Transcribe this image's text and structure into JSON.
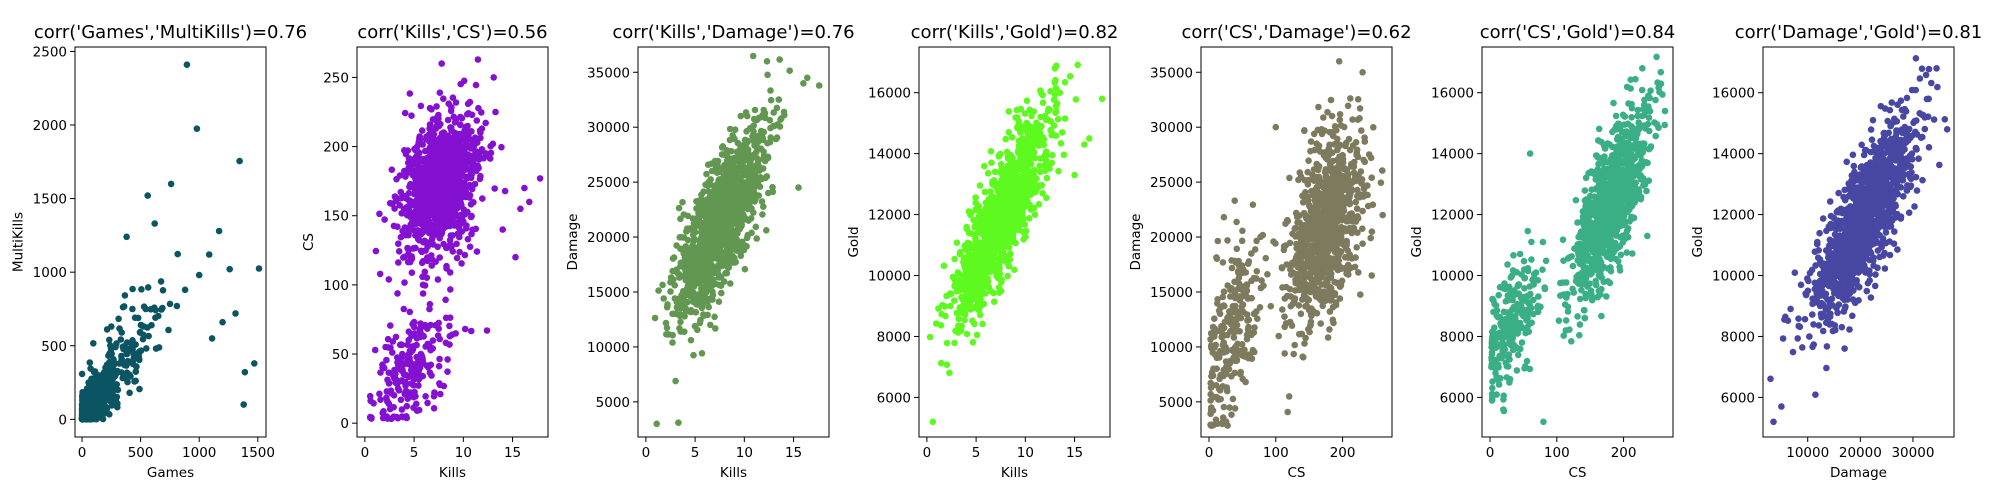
{
  "chart_data": [
    {
      "type": "scatter",
      "title": "corr('Games','MultiKills')=0.76",
      "xlabel": "Games",
      "ylabel": "MultiKills",
      "xlim": [
        -60,
        1570
      ],
      "ylim": [
        -120,
        2530
      ],
      "xticks": [
        0,
        500,
        1000,
        1500
      ],
      "yticks": [
        0,
        500,
        1000,
        1500,
        2000,
        2500
      ],
      "color": "#0b5563",
      "point_clusters": [
        {
          "x_mean": 90,
          "x_sd": 70,
          "y_mean": 110,
          "y_sd": 90,
          "rho": 0.7,
          "count": 900,
          "x_min": 0,
          "y_min": 0
        },
        {
          "x_mean": 320,
          "x_sd": 170,
          "y_mean": 380,
          "y_sd": 220,
          "rho": 0.7,
          "count": 160,
          "x_min": 0,
          "y_min": 0
        }
      ],
      "points": [
        [
          895,
          2410
        ],
        [
          980,
          1975
        ],
        [
          1345,
          1755
        ],
        [
          760,
          1600
        ],
        [
          1170,
          1280
        ],
        [
          1085,
          1120
        ],
        [
          1260,
          1020
        ],
        [
          1510,
          1025
        ],
        [
          1000,
          980
        ],
        [
          620,
          1330
        ],
        [
          560,
          1520
        ],
        [
          380,
          1240
        ],
        [
          1470,
          380
        ],
        [
          1390,
          320
        ],
        [
          1380,
          100
        ],
        [
          1310,
          720
        ],
        [
          1200,
          660
        ],
        [
          1110,
          550
        ],
        [
          880,
          880
        ],
        [
          810,
          770
        ]
      ]
    },
    {
      "type": "scatter",
      "title": "corr('Kills','CS')=0.56",
      "xlabel": "Kills",
      "ylabel": "CS",
      "xlim": [
        -0.8,
        18.6
      ],
      "ylim": [
        -10,
        272
      ],
      "xticks": [
        0,
        5,
        10,
        15
      ],
      "yticks": [
        0,
        50,
        100,
        150,
        200,
        250
      ],
      "color": "#8410d2",
      "point_clusters": [
        {
          "x_mean": 7.6,
          "x_sd": 2.0,
          "y_mean": 172,
          "y_sd": 26,
          "rho": 0.3,
          "count": 1100,
          "x_min": 0.5
        },
        {
          "x_mean": 4.5,
          "x_sd": 2.0,
          "y_mean": 40,
          "y_sd": 22,
          "rho": 0.5,
          "count": 220,
          "x_min": 0.5,
          "y_min": 3
        }
      ],
      "points": [
        [
          7.8,
          260
        ],
        [
          16.2,
          170
        ],
        [
          15.8,
          155
        ],
        [
          16.7,
          160
        ],
        [
          17.8,
          177
        ],
        [
          15.3,
          120
        ],
        [
          12.4,
          67
        ],
        [
          14.0,
          140
        ],
        [
          13.0,
          202
        ]
      ]
    },
    {
      "type": "scatter",
      "title": "corr('Kills','Damage')=0.76",
      "xlabel": "Kills",
      "ylabel": "Damage",
      "xlim": [
        -0.8,
        18.6
      ],
      "ylim": [
        1800,
        37300
      ],
      "xticks": [
        0,
        5,
        10,
        15
      ],
      "yticks": [
        5000,
        10000,
        15000,
        20000,
        25000,
        30000,
        35000
      ],
      "color": "#629751",
      "point_clusters": [
        {
          "x_mean": 7.7,
          "x_sd": 2.3,
          "y_mean": 21500,
          "y_sd": 4300,
          "rho": 0.76,
          "count": 1200,
          "x_min": 0.5,
          "y_min": 2800
        }
      ],
      "points": [
        [
          17.6,
          33800
        ],
        [
          16.0,
          34000
        ],
        [
          16.4,
          34500
        ],
        [
          12.3,
          36000
        ],
        [
          15.5,
          24500
        ],
        [
          1.1,
          3000
        ],
        [
          3.3,
          3100
        ]
      ]
    },
    {
      "type": "scatter",
      "title": "corr('Kills','Gold')=0.82",
      "xlabel": "Kills",
      "ylabel": "Gold",
      "xlim": [
        -0.8,
        18.6
      ],
      "ylim": [
        4700,
        17500
      ],
      "xticks": [
        0,
        5,
        10,
        15
      ],
      "yticks": [
        6000,
        8000,
        10000,
        12000,
        14000,
        16000
      ],
      "color": "#5ef91e",
      "point_clusters": [
        {
          "x_mean": 7.7,
          "x_sd": 2.3,
          "y_mean": 12000,
          "y_sd": 1600,
          "rho": 0.82,
          "count": 1200,
          "x_min": 0.3,
          "y_min": 5200
        }
      ],
      "points": [
        [
          13.0,
          16800
        ],
        [
          17.8,
          15800
        ],
        [
          16.5,
          14500
        ],
        [
          16.0,
          14300
        ],
        [
          0.6,
          5200
        ],
        [
          15.0,
          13300
        ]
      ]
    },
    {
      "type": "scatter",
      "title": "corr('CS','Damage')=0.62",
      "xlabel": "CS",
      "ylabel": "Damage",
      "xlim": [
        -12,
        274
      ],
      "ylim": [
        1800,
        37300
      ],
      "xticks": [
        0,
        100,
        200
      ],
      "yticks": [
        5000,
        10000,
        15000,
        20000,
        25000,
        30000,
        35000
      ],
      "color": "#7d7a5e",
      "point_clusters": [
        {
          "x_mean": 175,
          "x_sd": 27,
          "y_mean": 21000,
          "y_sd": 4200,
          "rho": 0.45,
          "count": 1050,
          "y_min": 3000
        },
        {
          "x_mean": 35,
          "x_sd": 22,
          "y_mean": 11500,
          "y_sd": 4500,
          "rho": 0.5,
          "count": 250,
          "x_min": 2,
          "y_min": 2800
        }
      ],
      "points": [
        [
          195,
          36000
        ],
        [
          230,
          35000
        ],
        [
          260,
          22000
        ],
        [
          100,
          30000
        ],
        [
          120,
          5500
        ]
      ]
    },
    {
      "type": "scatter",
      "title": "corr('CS','Gold')=0.84",
      "xlabel": "CS",
      "ylabel": "Gold",
      "xlim": [
        -12,
        274
      ],
      "ylim": [
        4700,
        17500
      ],
      "xticks": [
        0,
        100,
        200
      ],
      "yticks": [
        6000,
        8000,
        10000,
        12000,
        14000,
        16000
      ],
      "color": "#3aaf85",
      "point_clusters": [
        {
          "x_mean": 180,
          "x_sd": 28,
          "y_mean": 12300,
          "y_sd": 1500,
          "rho": 0.75,
          "count": 1050,
          "y_min": 5500
        },
        {
          "x_mean": 30,
          "x_sd": 22,
          "y_mean": 8300,
          "y_sd": 1100,
          "rho": 0.6,
          "count": 250,
          "x_min": 2,
          "y_min": 5500
        }
      ],
      "points": [
        [
          228,
          16800
        ],
        [
          237,
          15900
        ],
        [
          262,
          15400
        ],
        [
          80,
          5200
        ],
        [
          20,
          5600
        ],
        [
          60,
          14000
        ]
      ]
    },
    {
      "type": "scatter",
      "title": "corr('Damage','Gold')=0.81",
      "xlabel": "Damage",
      "ylabel": "Gold",
      "xlim": [
        1500,
        37800
      ],
      "ylim": [
        4700,
        17500
      ],
      "xticks": [
        10000,
        20000,
        30000
      ],
      "yticks": [
        6000,
        8000,
        10000,
        12000,
        14000,
        16000
      ],
      "color": "#4847a3",
      "point_clusters": [
        {
          "x_mean": 20500,
          "x_sd": 5000,
          "y_mean": 11800,
          "y_sd": 1700,
          "rho": 0.81,
          "count": 1300,
          "x_min": 2800,
          "y_min": 5200
        }
      ],
      "points": [
        [
          34500,
          16800
        ],
        [
          33000,
          15800
        ],
        [
          36500,
          14800
        ],
        [
          3500,
          5200
        ],
        [
          17000,
          7600
        ],
        [
          5000,
          5700
        ]
      ]
    }
  ]
}
